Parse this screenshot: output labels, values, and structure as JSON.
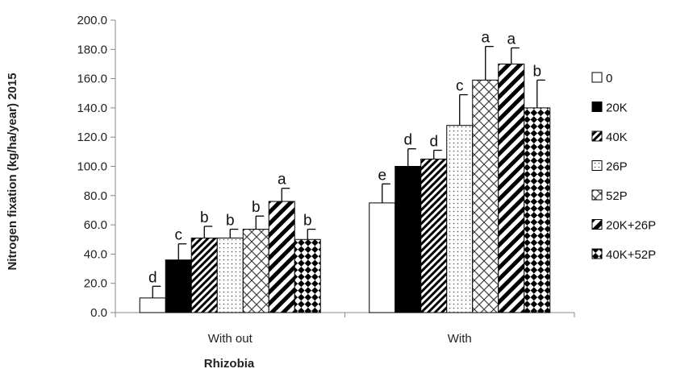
{
  "chart_data": {
    "type": "bar",
    "title": "",
    "xlabel": "Rhizobia",
    "ylabel": "Nitrogen fixation (kg/ha/year) 2015",
    "ylim": [
      0,
      200
    ],
    "ytick_step": 20,
    "ytick_labels": [
      "0.0",
      "20.0",
      "40.0",
      "60.0",
      "80.0",
      "100.0",
      "120.0",
      "140.0",
      "160.0",
      "180.0",
      "200.0"
    ],
    "categories": [
      "With out",
      "With"
    ],
    "grid": false,
    "legend_position": "right",
    "series": [
      {
        "name": "0",
        "pattern": "white",
        "values": [
          10,
          75
        ],
        "errors": [
          8,
          13
        ],
        "labels": [
          "d",
          "e"
        ]
      },
      {
        "name": "20K",
        "pattern": "black",
        "values": [
          36,
          100
        ],
        "errors": [
          11,
          12
        ],
        "labels": [
          "c",
          "d"
        ]
      },
      {
        "name": "40K",
        "pattern": "diag-dense",
        "values": [
          51,
          105
        ],
        "errors": [
          8,
          6
        ],
        "labels": [
          "b",
          "d"
        ]
      },
      {
        "name": "26P",
        "pattern": "dots",
        "values": [
          51,
          128
        ],
        "errors": [
          6,
          21
        ],
        "labels": [
          "b",
          "c"
        ]
      },
      {
        "name": "52P",
        "pattern": "diag-cross",
        "values": [
          57,
          159
        ],
        "errors": [
          9,
          23
        ],
        "labels": [
          "b",
          "a"
        ]
      },
      {
        "name": "20K+26P",
        "pattern": "diag-wide",
        "values": [
          76,
          170
        ],
        "errors": [
          9,
          11
        ],
        "labels": [
          "a",
          "a"
        ]
      },
      {
        "name": "40K+52P",
        "pattern": "checker",
        "values": [
          50,
          140
        ],
        "errors": [
          7,
          19
        ],
        "labels": [
          "b",
          "b"
        ]
      }
    ]
  }
}
